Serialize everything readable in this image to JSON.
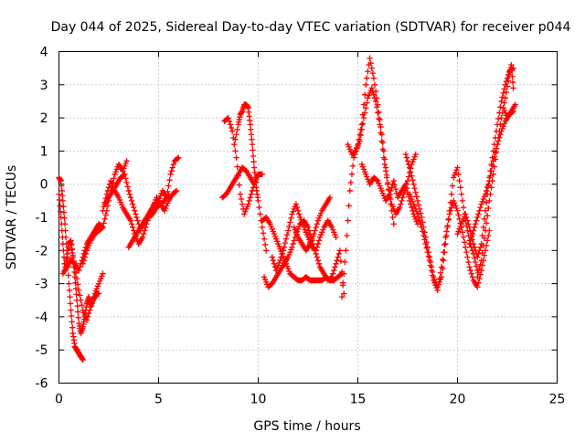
{
  "chart_data": {
    "type": "scatter",
    "title": "Day 044 of 2025, Sidereal Day-to-day VTEC variation (SDTVAR) for receiver p044",
    "xlabel": "GPS time / hours",
    "ylabel": "SDTVAR / TECUs",
    "xlim": [
      0,
      25
    ],
    "ylim": [
      -6,
      4
    ],
    "x_ticks": [
      0,
      5,
      10,
      15,
      20,
      25
    ],
    "y_ticks": [
      -6,
      -5,
      -4,
      -3,
      -2,
      -1,
      0,
      1,
      2,
      3,
      4
    ],
    "grid": true,
    "marker": "+",
    "color": "#ff0000",
    "series": [
      {
        "name": "trace-a",
        "x": [
          0.0,
          0.1,
          0.2,
          0.3,
          0.4,
          0.5,
          0.6,
          0.7,
          0.8,
          0.9,
          1.0,
          1.1,
          1.2
        ],
        "values": [
          0.2,
          0.1,
          -0.5,
          -1.2,
          -2.0,
          -3.0,
          -3.8,
          -4.5,
          -4.9,
          -5.0,
          -5.1,
          -5.2,
          -5.3
        ]
      },
      {
        "name": "trace-b",
        "x": [
          0.0,
          0.1,
          0.2,
          0.3,
          0.4,
          0.5,
          0.6,
          0.7,
          0.8,
          0.9,
          1.0,
          1.1,
          1.2,
          1.3,
          1.4,
          1.5,
          1.6,
          1.7,
          1.8,
          1.9,
          2.0
        ],
        "values": [
          -0.3,
          -1.0,
          -1.8,
          -2.6,
          -2.2,
          -1.8,
          -1.7,
          -2.2,
          -2.8,
          -3.5,
          -4.2,
          -4.5,
          -4.3,
          -4.0,
          -3.6,
          -3.4,
          -3.7,
          -3.5,
          -3.4,
          -3.3,
          -3.3
        ]
      },
      {
        "name": "trace-c",
        "x": [
          0.2,
          0.4,
          0.6,
          0.8,
          1.0,
          1.2,
          1.4,
          1.6,
          1.8,
          2.0,
          2.2
        ],
        "values": [
          -2.7,
          -2.5,
          -2.3,
          -2.4,
          -2.6,
          -2.2,
          -1.8,
          -1.6,
          -1.4,
          -1.2,
          -1.3
        ]
      },
      {
        "name": "trace-d",
        "x": [
          0.6,
          0.8,
          1.0,
          1.2,
          1.4,
          1.6,
          1.8,
          2.0,
          2.2
        ],
        "values": [
          -1.8,
          -2.5,
          -3.2,
          -3.8,
          -4.1,
          -3.7,
          -3.3,
          -3.0,
          -2.7
        ]
      },
      {
        "name": "trace-e",
        "x": [
          1.2,
          1.4,
          1.6,
          1.8,
          2.0,
          2.2,
          2.4,
          2.6,
          2.8,
          3.0,
          3.2,
          3.4
        ],
        "values": [
          -2.4,
          -2.0,
          -1.7,
          -1.5,
          -1.4,
          -1.3,
          -0.8,
          -0.2,
          0.3,
          0.6,
          0.4,
          0.7
        ]
      },
      {
        "name": "trace-f",
        "x": [
          2.2,
          2.4,
          2.6,
          2.8,
          3.0,
          3.2,
          3.4,
          3.6,
          3.8,
          4.0,
          4.2,
          4.4,
          4.6,
          4.8,
          5.0,
          5.2,
          5.4,
          5.6,
          5.8,
          6.0
        ],
        "values": [
          -0.8,
          -0.3,
          0.1,
          -0.2,
          -0.4,
          -0.7,
          -0.9,
          -1.1,
          -1.5,
          -1.8,
          -1.6,
          -1.2,
          -0.8,
          -0.6,
          -0.5,
          -0.2,
          -0.4,
          0.3,
          0.7,
          0.8
        ]
      },
      {
        "name": "trace-g",
        "x": [
          2.3,
          2.5,
          2.7,
          2.9,
          3.1,
          3.3,
          3.5,
          3.7,
          3.9,
          4.1,
          4.3,
          4.5,
          4.7,
          4.9,
          5.1,
          5.3,
          5.5,
          5.7,
          5.9
        ],
        "values": [
          -0.6,
          -0.4,
          -0.2,
          0.0,
          0.2,
          0.3,
          -0.2,
          -0.6,
          -1.0,
          -1.4,
          -1.1,
          -0.9,
          -0.7,
          -0.4,
          -0.6,
          -0.8,
          -0.5,
          -0.3,
          -0.2
        ]
      },
      {
        "name": "trace-h",
        "x": [
          3.5,
          3.7,
          3.9,
          4.1,
          4.3,
          4.5,
          4.7,
          4.9,
          5.1,
          5.3,
          5.5
        ],
        "values": [
          -1.9,
          -1.7,
          -1.5,
          -1.3,
          -1.1,
          -1.0,
          -0.9,
          -0.7,
          -0.6,
          -0.5,
          -0.3
        ]
      },
      {
        "name": "trace-i",
        "x": [
          8.2,
          8.4,
          8.6,
          8.8,
          9.0,
          9.2,
          9.4,
          9.6,
          9.8,
          10.0,
          10.2
        ],
        "values": [
          -0.4,
          -0.3,
          -0.1,
          0.1,
          0.3,
          0.5,
          0.4,
          0.2,
          0.0,
          0.3,
          0.3
        ]
      },
      {
        "name": "trace-j",
        "x": [
          8.3,
          8.5,
          8.7,
          8.9,
          9.1,
          9.3,
          9.5,
          9.7,
          9.9
        ],
        "values": [
          1.9,
          2.0,
          1.6,
          0.8,
          -0.3,
          -0.9,
          -0.6,
          -0.2,
          0.2
        ]
      },
      {
        "name": "trace-k",
        "x": [
          8.8,
          9.0,
          9.1,
          9.2,
          9.3,
          9.4,
          9.5,
          9.6,
          9.7,
          9.8,
          9.9,
          10.0,
          10.2,
          10.4
        ],
        "values": [
          1.2,
          1.8,
          2.1,
          2.2,
          2.4,
          2.4,
          2.3,
          1.8,
          1.2,
          0.5,
          -0.1,
          -0.5,
          -1.3,
          -2.0
        ]
      },
      {
        "name": "trace-l",
        "x": [
          10.3,
          10.5,
          10.7,
          10.9,
          11.1,
          11.3,
          11.5,
          11.7,
          11.9,
          12.1,
          12.3,
          12.5,
          12.7,
          12.9,
          13.1,
          13.3,
          13.5,
          13.7,
          13.9,
          14.1,
          14.3
        ],
        "values": [
          -2.8,
          -3.1,
          -3.0,
          -2.8,
          -2.6,
          -2.4,
          -2.2,
          -1.9,
          -1.5,
          -1.2,
          -1.1,
          -1.3,
          -1.7,
          -2.1,
          -2.5,
          -2.7,
          -2.9,
          -2.8,
          -2.4,
          -2.0,
          -3.3
        ]
      },
      {
        "name": "trace-m",
        "x": [
          10.2,
          10.4,
          10.6,
          10.8,
          11.0,
          11.2,
          11.4,
          11.6,
          11.8,
          12.0,
          12.2,
          12.4,
          12.6,
          12.8,
          13.0,
          13.2,
          13.4,
          13.6,
          13.8,
          14.0,
          14.2
        ],
        "values": [
          -1.1,
          -1.0,
          -1.2,
          -1.5,
          -1.8,
          -2.1,
          -2.4,
          -2.7,
          -2.8,
          -2.9,
          -2.9,
          -2.8,
          -2.9,
          -2.9,
          -2.9,
          -2.9,
          -2.8,
          -2.9,
          -2.9,
          -2.8,
          -2.7
        ]
      },
      {
        "name": "trace-n",
        "x": [
          10.7,
          10.9,
          11.1,
          11.3,
          11.5,
          11.7,
          11.9,
          12.1,
          12.3,
          12.5,
          12.7,
          12.9,
          13.1,
          13.3,
          13.5,
          13.7,
          13.9
        ],
        "values": [
          -2.2,
          -2.6,
          -2.3,
          -1.9,
          -1.4,
          -0.9,
          -0.6,
          -1.0,
          -1.3,
          -1.6,
          -1.9,
          -2.0,
          -1.6,
          -1.3,
          -1.1,
          -1.3,
          -1.6
        ]
      },
      {
        "name": "trace-o",
        "x": [
          11.8,
          12.0,
          12.2,
          12.4,
          12.6,
          12.8,
          13.0,
          13.2,
          13.4,
          13.6
        ],
        "values": [
          -1.3,
          -1.6,
          -1.8,
          -2.0,
          -1.8,
          -1.5,
          -1.1,
          -0.8,
          -0.6,
          -0.4
        ]
      },
      {
        "name": "trace-p",
        "x": [
          14.2,
          14.4,
          14.6,
          14.8,
          15.0,
          15.2,
          15.4,
          15.6,
          15.8,
          16.0,
          16.2,
          16.4,
          16.6,
          16.8
        ],
        "values": [
          -3.4,
          -2.0,
          -0.2,
          0.8,
          1.2,
          1.8,
          3.0,
          3.8,
          3.2,
          2.4,
          1.5,
          0.5,
          -0.4,
          -1.2
        ]
      },
      {
        "name": "trace-q",
        "x": [
          14.5,
          14.7,
          14.9,
          15.1,
          15.3,
          15.5,
          15.7,
          15.9,
          16.1,
          16.3,
          16.5,
          16.7,
          16.9,
          17.1,
          17.3,
          17.5,
          17.7,
          17.9
        ],
        "values": [
          1.2,
          0.9,
          1.0,
          1.3,
          2.0,
          2.6,
          2.9,
          2.5,
          1.8,
          0.8,
          0.0,
          -0.6,
          -0.9,
          -0.7,
          -0.3,
          0.1,
          0.6,
          0.9
        ]
      },
      {
        "name": "trace-r",
        "x": [
          15.2,
          15.4,
          15.6,
          15.8,
          16.0,
          16.2,
          16.4,
          16.6,
          16.8,
          17.0,
          17.2,
          17.4,
          17.6,
          17.8,
          18.0
        ],
        "values": [
          0.6,
          0.3,
          0.0,
          0.2,
          0.1,
          -0.2,
          -0.5,
          -0.3,
          0.1,
          -0.4,
          -0.2,
          0.0,
          -0.5,
          -0.9,
          -1.2
        ]
      },
      {
        "name": "trace-s",
        "x": [
          17.4,
          17.6,
          17.8,
          18.0,
          18.2,
          18.4,
          18.6,
          18.8,
          19.0,
          19.2,
          19.4,
          19.6,
          19.8,
          20.0,
          20.2,
          20.4,
          20.6,
          20.8,
          21.0
        ],
        "values": [
          0.9,
          0.5,
          0.0,
          -0.5,
          -1.0,
          -1.6,
          -2.2,
          -2.8,
          -3.1,
          -2.8,
          -1.8,
          -0.8,
          0.2,
          0.5,
          -0.3,
          -1.1,
          -1.7,
          -2.1,
          -2.6
        ]
      },
      {
        "name": "trace-t",
        "x": [
          17.6,
          17.8,
          18.0,
          18.2,
          18.4,
          18.6,
          18.8,
          19.0,
          19.2,
          19.4,
          19.6,
          19.8,
          20.0,
          20.2,
          20.4,
          20.6,
          20.8,
          21.0,
          21.2,
          21.4,
          21.6
        ],
        "values": [
          -0.3,
          -0.6,
          -0.9,
          -1.3,
          -1.8,
          -2.3,
          -2.9,
          -3.2,
          -2.5,
          -1.6,
          -0.9,
          -0.5,
          -0.8,
          -1.3,
          -1.9,
          -2.5,
          -2.9,
          -3.1,
          -2.6,
          -2.0,
          -1.4
        ]
      },
      {
        "name": "trace-u",
        "x": [
          20.0,
          20.2,
          20.4,
          20.6,
          20.8,
          21.0,
          21.2,
          21.4,
          21.6,
          21.8,
          22.0,
          22.2,
          22.4,
          22.6,
          22.8
        ],
        "values": [
          -1.5,
          -1.2,
          -0.9,
          -1.3,
          -1.8,
          -2.2,
          -1.8,
          -0.8,
          0.2,
          1.0,
          1.8,
          2.5,
          3.0,
          3.4,
          3.5
        ]
      },
      {
        "name": "trace-v",
        "x": [
          20.6,
          20.8,
          21.0,
          21.2,
          21.4,
          21.6,
          21.8,
          22.0,
          22.2,
          22.4,
          22.6,
          22.8
        ],
        "values": [
          -1.8,
          -1.4,
          -1.0,
          -0.6,
          -0.3,
          0.1,
          0.7,
          1.2,
          1.6,
          1.9,
          2.1,
          2.2
        ]
      },
      {
        "name": "trace-w",
        "x": [
          21.0,
          21.2,
          21.4,
          21.6,
          21.8,
          22.0,
          22.2,
          22.4,
          22.6,
          22.7,
          22.8
        ],
        "values": [
          -2.8,
          -2.3,
          -1.4,
          -0.5,
          0.3,
          1.2,
          2.0,
          2.6,
          3.3,
          3.6,
          2.9
        ]
      },
      {
        "name": "trace-x",
        "x": [
          22.3,
          22.5,
          22.7,
          22.9
        ],
        "values": [
          2.3,
          2.0,
          2.2,
          2.4
        ]
      }
    ]
  }
}
